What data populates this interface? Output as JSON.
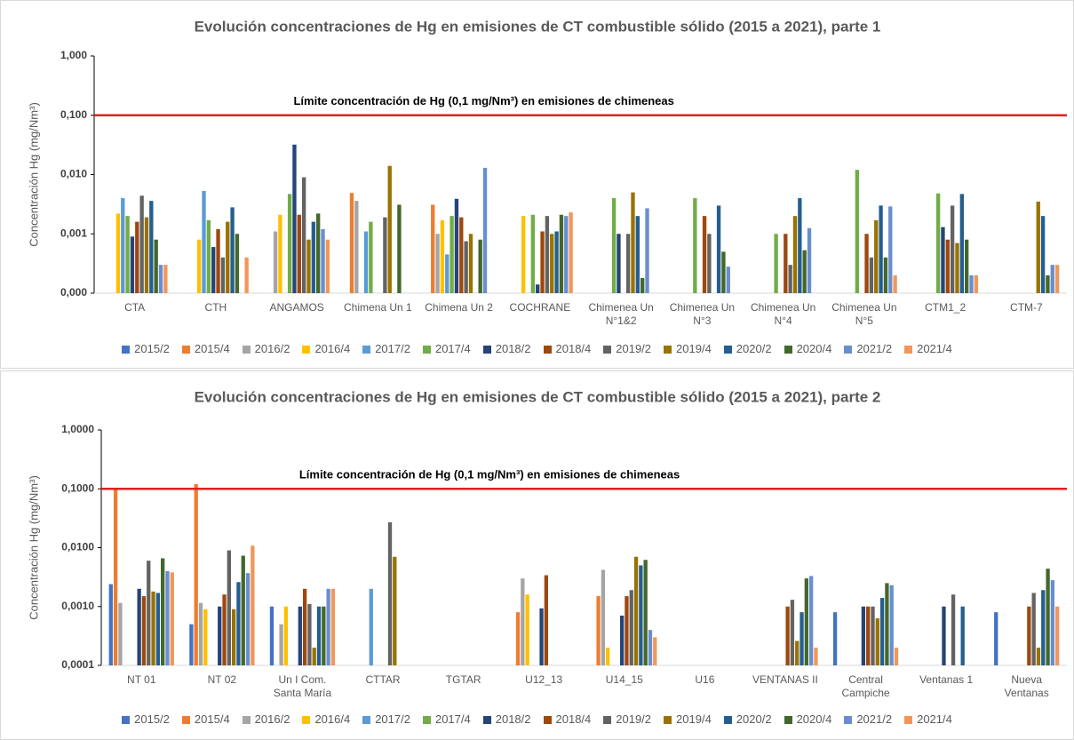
{
  "chart_data": [
    {
      "type": "bar",
      "title": "Evolución concentraciones de Hg en emisiones de CT combustible sólido (2015 a 2021), parte 1",
      "y_label": "Concentración Hg (mg/Nm³)",
      "log_scale": true,
      "grid": false,
      "legend": "bottom",
      "ylim": [
        0.0001,
        1
      ],
      "yticks": [
        {
          "value": 0.0001,
          "label": "0,000"
        },
        {
          "value": 0.001,
          "label": "0,001"
        },
        {
          "value": 0.01,
          "label": "0,010"
        },
        {
          "value": 0.1,
          "label": "0,100"
        },
        {
          "value": 1,
          "label": "1,000"
        }
      ],
      "reference_line": {
        "value": 0.1,
        "label": "Límite concentración de Hg (0,1 mg/Nm³) en emisiones de chimeneas",
        "color": "#e02020"
      },
      "categories": [
        "CTA",
        "CTH",
        "ANGAMOS",
        "Chimena Un 1",
        "Chimena Un 2",
        "COCHRANE",
        "Chimenea Un N°1&2",
        "Chimenea Un N°3",
        "Chimenea Un N°4",
        "Chimenea Un N°5",
        "CTM1_2",
        "CTM-7"
      ],
      "series": [
        {
          "name": "2015/2",
          "color": "#4472c4",
          "values": [
            null,
            null,
            null,
            null,
            null,
            null,
            null,
            null,
            null,
            null,
            null,
            null
          ]
        },
        {
          "name": "2015/4",
          "color": "#ed7d31",
          "values": [
            null,
            null,
            null,
            0.0049,
            0.0031,
            null,
            null,
            null,
            null,
            null,
            null,
            null
          ]
        },
        {
          "name": "2016/2",
          "color": "#a5a5a5",
          "values": [
            null,
            null,
            0.0011,
            0.0036,
            0.001,
            null,
            null,
            null,
            null,
            null,
            null,
            null
          ]
        },
        {
          "name": "2016/4",
          "color": "#ffc000",
          "values": [
            0.0022,
            0.0008,
            0.0021,
            null,
            0.0017,
            0.002,
            null,
            null,
            null,
            null,
            null,
            null
          ]
        },
        {
          "name": "2017/2",
          "color": "#5b9bd5",
          "values": [
            0.004,
            0.0053,
            null,
            0.0011,
            0.00045,
            null,
            null,
            null,
            null,
            null,
            null,
            null
          ]
        },
        {
          "name": "2017/4",
          "color": "#70ad47",
          "values": [
            0.002,
            0.0017,
            0.0047,
            0.0016,
            0.002,
            0.0021,
            0.004,
            0.004,
            0.001,
            0.012,
            0.0048,
            null
          ]
        },
        {
          "name": "2018/2",
          "color": "#264478",
          "values": [
            0.0009,
            0.0006,
            0.032,
            null,
            0.0039,
            0.00014,
            0.001,
            null,
            null,
            null,
            0.0013,
            null
          ]
        },
        {
          "name": "2018/4",
          "color": "#9e480e",
          "values": [
            0.0016,
            0.0012,
            0.0021,
            null,
            0.0019,
            0.0011,
            null,
            0.002,
            0.001,
            0.001,
            0.0008,
            null
          ]
        },
        {
          "name": "2019/2",
          "color": "#636363",
          "values": [
            0.0044,
            0.0004,
            0.009,
            0.0019,
            0.00075,
            0.002,
            0.001,
            0.001,
            0.0003,
            0.0004,
            0.003,
            null
          ]
        },
        {
          "name": "2019/4",
          "color": "#997300",
          "values": [
            0.0019,
            0.0016,
            0.0008,
            0.014,
            0.001,
            0.001,
            0.005,
            null,
            0.002,
            0.0017,
            0.0007,
            0.0035
          ]
        },
        {
          "name": "2020/2",
          "color": "#255e91",
          "values": [
            0.0036,
            0.0028,
            0.0016,
            null,
            null,
            0.0011,
            0.002,
            0.003,
            0.004,
            0.003,
            0.0047,
            0.002
          ]
        },
        {
          "name": "2020/4",
          "color": "#43682b",
          "values": [
            0.0008,
            0.001,
            0.0022,
            0.0031,
            0.0008,
            0.0021,
            0.00018,
            0.0005,
            0.00053,
            0.0004,
            0.0008,
            0.0002
          ]
        },
        {
          "name": "2021/2",
          "color": "#698ed0",
          "values": [
            0.0003,
            null,
            0.0012,
            null,
            0.013,
            0.002,
            0.0027,
            0.00028,
            0.00125,
            0.0029,
            0.0002,
            0.0003
          ]
        },
        {
          "name": "2021/4",
          "color": "#f1975a",
          "values": [
            0.0003,
            0.0004,
            0.0008,
            null,
            null,
            0.0023,
            null,
            null,
            null,
            0.0002,
            0.0002,
            0.0003
          ]
        }
      ]
    },
    {
      "type": "bar",
      "title": "Evolución concentraciones de Hg en emisiones de CT combustible sólido (2015 a 2021), parte 2",
      "y_label": "Concentración Hg (mg/Nm³)",
      "log_scale": true,
      "grid": false,
      "legend": "bottom",
      "ylim": [
        0.0001,
        1
      ],
      "yticks": [
        {
          "value": 0.0001,
          "label": "0,0001"
        },
        {
          "value": 0.001,
          "label": "0,0010"
        },
        {
          "value": 0.01,
          "label": "0,0100"
        },
        {
          "value": 0.1,
          "label": "0,1000"
        },
        {
          "value": 1,
          "label": "1,0000"
        }
      ],
      "reference_line": {
        "value": 0.1,
        "label": "Límite concentración de Hg (0,1 mg/Nm³) en emisiones de chimeneas",
        "color": "#e02020"
      },
      "categories": [
        "NT 01",
        "NT 02",
        "Un I Com. Santa María",
        "CTTAR",
        "TGTAR",
        "U12_13",
        "U14_15",
        "U16",
        "VENTANAS II",
        "Central Campiche",
        "Ventanas 1",
        "Nueva Ventanas"
      ],
      "series": [
        {
          "name": "2015/2",
          "color": "#4472c4",
          "values": [
            0.0024,
            0.0005,
            0.001,
            null,
            null,
            null,
            null,
            null,
            null,
            0.0008,
            null,
            0.0008
          ]
        },
        {
          "name": "2015/4",
          "color": "#ed7d31",
          "values": [
            0.1,
            0.12,
            null,
            null,
            null,
            0.0008,
            0.0015,
            null,
            null,
            null,
            null,
            null
          ]
        },
        {
          "name": "2016/2",
          "color": "#a5a5a5",
          "values": [
            0.00115,
            0.00115,
            0.0005,
            null,
            null,
            0.003,
            0.0042,
            null,
            null,
            null,
            null,
            null
          ]
        },
        {
          "name": "2016/4",
          "color": "#ffc000",
          "values": [
            null,
            0.0009,
            0.001,
            null,
            null,
            0.0016,
            0.0002,
            null,
            null,
            null,
            null,
            null
          ]
        },
        {
          "name": "2017/2",
          "color": "#5b9bd5",
          "values": [
            null,
            null,
            null,
            0.002,
            null,
            null,
            null,
            null,
            null,
            null,
            null,
            null
          ]
        },
        {
          "name": "2017/4",
          "color": "#70ad47",
          "values": [
            null,
            null,
            null,
            null,
            null,
            null,
            null,
            null,
            null,
            null,
            null,
            null
          ]
        },
        {
          "name": "2018/2",
          "color": "#264478",
          "values": [
            0.002,
            0.001,
            0.001,
            null,
            null,
            0.00093,
            0.0007,
            null,
            null,
            0.001,
            0.001,
            null
          ]
        },
        {
          "name": "2018/4",
          "color": "#9e480e",
          "values": [
            0.0015,
            0.0016,
            0.002,
            null,
            null,
            0.0034,
            0.0015,
            null,
            0.001,
            0.001,
            null,
            0.001
          ]
        },
        {
          "name": "2019/2",
          "color": "#636363",
          "values": [
            0.006,
            0.009,
            0.0011,
            0.027,
            null,
            null,
            0.0019,
            null,
            0.0013,
            0.001,
            0.0016,
            0.0017
          ]
        },
        {
          "name": "2019/4",
          "color": "#997300",
          "values": [
            0.0018,
            0.0009,
            0.0002,
            0.007,
            null,
            null,
            0.007,
            null,
            0.00026,
            0.00063,
            null,
            0.0002
          ]
        },
        {
          "name": "2020/2",
          "color": "#255e91",
          "values": [
            0.0017,
            0.0026,
            0.001,
            null,
            null,
            null,
            0.005,
            null,
            0.0008,
            0.0014,
            0.001,
            0.0019
          ]
        },
        {
          "name": "2020/4",
          "color": "#43682b",
          "values": [
            0.0066,
            0.0073,
            0.001,
            null,
            null,
            null,
            0.0062,
            null,
            0.003,
            0.0025,
            null,
            0.0044
          ]
        },
        {
          "name": "2021/2",
          "color": "#698ed0",
          "values": [
            0.004,
            0.0037,
            0.002,
            null,
            null,
            null,
            0.0004,
            null,
            0.0033,
            0.0023,
            null,
            0.0028
          ]
        },
        {
          "name": "2021/4",
          "color": "#f1975a",
          "values": [
            0.0038,
            0.0108,
            0.002,
            null,
            null,
            null,
            0.0003,
            null,
            0.0002,
            0.0002,
            null,
            0.001
          ]
        }
      ]
    }
  ]
}
